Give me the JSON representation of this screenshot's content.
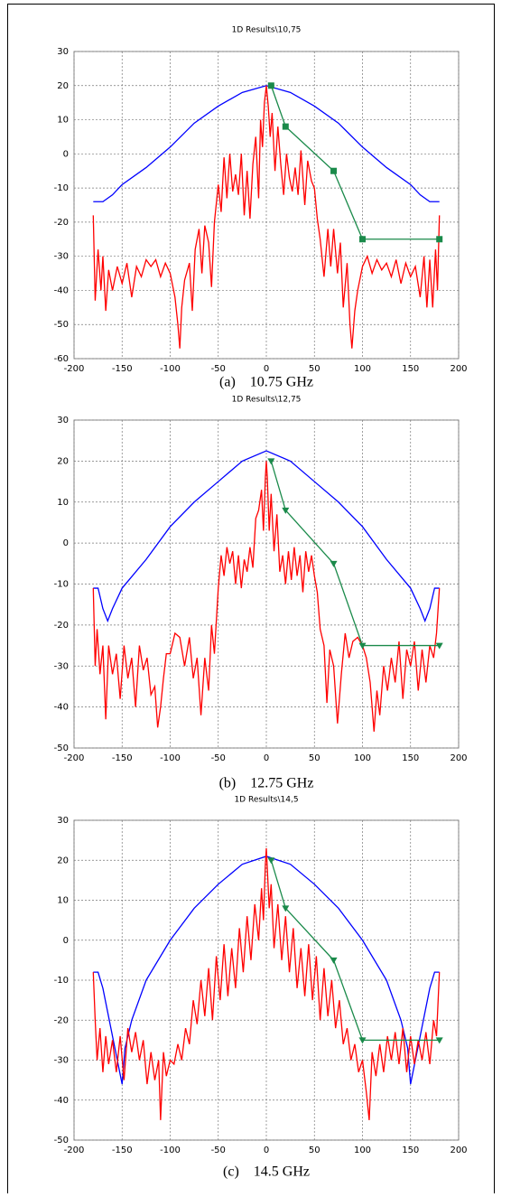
{
  "chart_data": [
    {
      "type": "line",
      "title": "1D Results\\10,75",
      "caption": "(a)    10.75 GHz",
      "xlim": [
        -200,
        200
      ],
      "xticks": [
        -200,
        -150,
        -100,
        -50,
        0,
        50,
        100,
        150,
        200
      ],
      "ylim": [
        -60,
        30
      ],
      "yticks": [
        -60,
        -50,
        -40,
        -30,
        -20,
        -10,
        0,
        10,
        20,
        30
      ],
      "grid": true,
      "series": [
        {
          "color": "#0000ff",
          "x": [
            -180,
            -170,
            -160,
            -150,
            -125,
            -100,
            -75,
            -50,
            -25,
            0,
            25,
            50,
            75,
            100,
            125,
            150,
            160,
            170,
            180
          ],
          "values": [
            -14,
            -14,
            -12,
            -9,
            -4,
            2,
            9,
            14,
            18,
            20,
            18,
            14,
            9,
            2,
            -4,
            -9,
            -12,
            -14,
            -14
          ]
        },
        {
          "color": "#ff0000",
          "x": [
            -180,
            -178,
            -175,
            -172,
            -170,
            -167,
            -164,
            -160,
            -155,
            -150,
            -145,
            -140,
            -135,
            -130,
            -125,
            -120,
            -115,
            -110,
            -105,
            -100,
            -95,
            -92,
            -90,
            -88,
            -85,
            -80,
            -77,
            -74,
            -70,
            -67,
            -64,
            -60,
            -57,
            -54,
            -50,
            -47,
            -44,
            -41,
            -38,
            -35,
            -32,
            -29,
            -26,
            -23,
            -20,
            -17,
            -14,
            -11,
            -8,
            -6,
            -4,
            -2,
            0,
            2,
            4,
            6,
            9,
            12,
            15,
            18,
            21,
            24,
            27,
            30,
            33,
            36,
            40,
            43,
            47,
            50,
            53,
            56,
            60,
            64,
            67,
            70,
            74,
            77,
            80,
            84,
            87,
            89,
            92,
            95,
            100,
            105,
            110,
            115,
            120,
            125,
            130,
            135,
            140,
            145,
            150,
            155,
            160,
            164,
            167,
            170,
            173,
            176,
            178,
            180
          ],
          "values": [
            -18,
            -43,
            -28,
            -40,
            -30,
            -46,
            -34,
            -40,
            -33,
            -38,
            -32,
            -42,
            -33,
            -36,
            -31,
            -33,
            -31,
            -36,
            -32,
            -35,
            -42,
            -50,
            -57,
            -45,
            -37,
            -32,
            -46,
            -28,
            -22,
            -35,
            -21,
            -26,
            -39,
            -20,
            -9,
            -17,
            -1,
            -13,
            0,
            -11,
            -6,
            -12,
            0,
            -18,
            -5,
            -19,
            -3,
            5,
            -13,
            10,
            2,
            15,
            20,
            14,
            5,
            12,
            -5,
            8,
            -3,
            -12,
            0,
            -7,
            -11,
            -4,
            -12,
            1,
            -15,
            -2,
            -8,
            -10,
            -19,
            -25,
            -36,
            -22,
            -33,
            -22,
            -35,
            -26,
            -45,
            -32,
            -50,
            -57,
            -46,
            -40,
            -33,
            -30,
            -35,
            -31,
            -34,
            -32,
            -36,
            -31,
            -38,
            -32,
            -36,
            -33,
            -42,
            -30,
            -45,
            -31,
            -45,
            -28,
            -40,
            -18
          ]
        },
        {
          "color": "#1a8a4a",
          "marker": "square",
          "x": [
            5,
            20,
            70,
            100,
            180
          ],
          "values": [
            20,
            8,
            -5,
            -25,
            -25
          ]
        }
      ]
    },
    {
      "type": "line",
      "title": "1D Results\\12,75",
      "caption": "(b)    12.75 GHz",
      "xlim": [
        -200,
        200
      ],
      "xticks": [
        -200,
        -150,
        -100,
        -50,
        0,
        50,
        100,
        150,
        200
      ],
      "ylim": [
        -50,
        30
      ],
      "yticks": [
        -50,
        -40,
        -30,
        -20,
        -10,
        0,
        10,
        20,
        30
      ],
      "grid": true,
      "series": [
        {
          "color": "#0000ff",
          "x": [
            -180,
            -175,
            -170,
            -165,
            -160,
            -150,
            -125,
            -100,
            -75,
            -50,
            -25,
            0,
            25,
            50,
            75,
            100,
            125,
            150,
            160,
            165,
            170,
            175,
            180
          ],
          "values": [
            -11,
            -11,
            -16,
            -19,
            -16,
            -11,
            -4,
            4,
            10,
            15,
            20,
            22.5,
            20,
            15,
            10,
            4,
            -4,
            -11,
            -16,
            -19,
            -16,
            -11,
            -11
          ]
        },
        {
          "color": "#ff0000",
          "x": [
            -180,
            -178,
            -176,
            -173,
            -170,
            -167,
            -164,
            -160,
            -156,
            -152,
            -148,
            -144,
            -140,
            -136,
            -132,
            -128,
            -124,
            -120,
            -116,
            -113,
            -110,
            -107,
            -104,
            -100,
            -95,
            -90,
            -85,
            -80,
            -76,
            -72,
            -68,
            -64,
            -60,
            -57,
            -54,
            -50,
            -47,
            -44,
            -41,
            -38,
            -35,
            -32,
            -29,
            -26,
            -23,
            -20,
            -17,
            -14,
            -11,
            -8,
            -5,
            -3,
            -1,
            0,
            1,
            3,
            5,
            8,
            11,
            14,
            17,
            20,
            23,
            26,
            29,
            32,
            35,
            38,
            41,
            44,
            47,
            50,
            53,
            56,
            60,
            63,
            66,
            70,
            74,
            78,
            82,
            86,
            90,
            95,
            100,
            104,
            108,
            112,
            115,
            118,
            122,
            126,
            130,
            134,
            138,
            142,
            146,
            150,
            154,
            158,
            162,
            166,
            170,
            174,
            177,
            180
          ],
          "values": [
            -11,
            -30,
            -21,
            -32,
            -25,
            -43,
            -25,
            -32,
            -27,
            -38,
            -25,
            -33,
            -28,
            -40,
            -25,
            -31,
            -28,
            -37,
            -35,
            -45,
            -40,
            -33,
            -27,
            -27,
            -22,
            -23,
            -30,
            -23,
            -33,
            -28,
            -42,
            -28,
            -36,
            -20,
            -27,
            -11,
            -3,
            -8,
            -1,
            -5,
            -2,
            -10,
            -3,
            -11,
            -4,
            -7,
            -1,
            -6,
            6,
            8,
            13,
            3,
            16,
            20,
            16,
            3,
            12,
            -2,
            7,
            -7,
            -3,
            -10,
            -2,
            -9,
            -1,
            -8,
            -3,
            -12,
            -2,
            -7,
            -3,
            -8,
            -12,
            -21,
            -25,
            -39,
            -26,
            -30,
            -44,
            -32,
            -22,
            -28,
            -24,
            -23,
            -25,
            -28,
            -34,
            -46,
            -36,
            -42,
            -30,
            -36,
            -28,
            -34,
            -24,
            -38,
            -26,
            -30,
            -24,
            -36,
            -26,
            -34,
            -25,
            -28,
            -22,
            -11
          ]
        },
        {
          "color": "#1a8a4a",
          "marker": "triangle",
          "x": [
            5,
            20,
            70,
            100,
            180
          ],
          "values": [
            20,
            8,
            -5,
            -25,
            -25
          ]
        }
      ]
    },
    {
      "type": "line",
      "title": "1D Results\\14,5",
      "caption": "(c)    14.5 GHz",
      "xlim": [
        -200,
        200
      ],
      "xticks": [
        -200,
        -150,
        -100,
        -50,
        0,
        50,
        100,
        150,
        200
      ],
      "ylim": [
        -50,
        30
      ],
      "yticks": [
        -50,
        -40,
        -30,
        -20,
        -10,
        0,
        10,
        20,
        30
      ],
      "grid": true,
      "series": [
        {
          "color": "#0000ff",
          "x": [
            -180,
            -175,
            -170,
            -165,
            -160,
            -155,
            -150,
            -147,
            -140,
            -125,
            -100,
            -75,
            -50,
            -25,
            0,
            25,
            50,
            75,
            100,
            125,
            140,
            147,
            150,
            155,
            160,
            165,
            170,
            175,
            180
          ],
          "values": [
            -8,
            -8,
            -12,
            -18,
            -24,
            -30,
            -36,
            -27,
            -20,
            -10,
            0,
            8,
            14,
            19,
            21,
            19,
            14,
            8,
            0,
            -10,
            -20,
            -27,
            -36,
            -30,
            -24,
            -18,
            -12,
            -8,
            -8
          ]
        },
        {
          "color": "#ff0000",
          "x": [
            -180,
            -178,
            -176,
            -173,
            -170,
            -167,
            -164,
            -160,
            -156,
            -152,
            -148,
            -144,
            -140,
            -136,
            -132,
            -128,
            -124,
            -120,
            -116,
            -112,
            -110,
            -107,
            -104,
            -100,
            -96,
            -92,
            -88,
            -84,
            -80,
            -76,
            -72,
            -68,
            -64,
            -60,
            -56,
            -52,
            -48,
            -44,
            -40,
            -36,
            -32,
            -28,
            -24,
            -20,
            -16,
            -12,
            -8,
            -5,
            -3,
            -1,
            0,
            1,
            3,
            5,
            8,
            12,
            16,
            20,
            24,
            28,
            32,
            36,
            40,
            44,
            48,
            52,
            56,
            60,
            64,
            68,
            72,
            76,
            80,
            84,
            88,
            92,
            96,
            100,
            104,
            107,
            110,
            114,
            118,
            122,
            126,
            130,
            134,
            138,
            142,
            146,
            150,
            154,
            158,
            162,
            166,
            170,
            174,
            177,
            180
          ],
          "values": [
            -8,
            -20,
            -30,
            -22,
            -33,
            -24,
            -31,
            -25,
            -33,
            -24,
            -35,
            -22,
            -28,
            -23,
            -30,
            -25,
            -36,
            -28,
            -35,
            -30,
            -45,
            -28,
            -34,
            -30,
            -31,
            -26,
            -30,
            -22,
            -26,
            -15,
            -21,
            -10,
            -19,
            -7,
            -20,
            -4,
            -15,
            -1,
            -14,
            -2,
            -12,
            3,
            -8,
            6,
            -5,
            9,
            0,
            13,
            5,
            19,
            23,
            18,
            8,
            14,
            -2,
            9,
            -5,
            6,
            -8,
            3,
            -12,
            -2,
            -14,
            -1,
            -15,
            -4,
            -20,
            -7,
            -19,
            -10,
            -22,
            -15,
            -26,
            -22,
            -30,
            -26,
            -33,
            -30,
            -38,
            -45,
            -28,
            -34,
            -26,
            -33,
            -24,
            -30,
            -23,
            -31,
            -22,
            -33,
            -24,
            -31,
            -25,
            -30,
            -23,
            -31,
            -20,
            -24,
            -8
          ]
        },
        {
          "color": "#1a8a4a",
          "marker": "triangle",
          "x": [
            5,
            20,
            70,
            100,
            180
          ],
          "values": [
            20,
            8,
            -5,
            -25,
            -25
          ]
        }
      ]
    }
  ]
}
